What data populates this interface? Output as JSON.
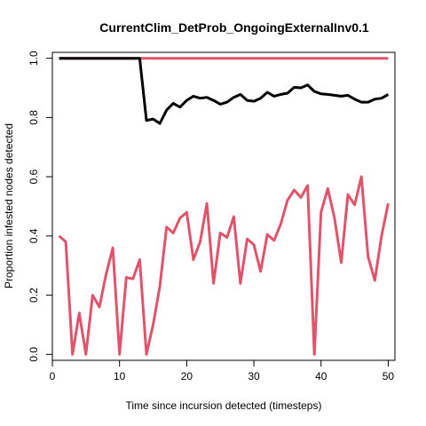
{
  "chart_data": {
    "type": "line",
    "title": "CurrentClim_DetProb_OngoingExternalInv0.1",
    "xlabel": "Time since incursion detected (timesteps)",
    "ylabel": "Proportion infested nodes detected",
    "xlim": [
      0,
      51
    ],
    "ylim": [
      -0.02,
      1.02
    ],
    "xticks": [
      0,
      10,
      20,
      30,
      40,
      50
    ],
    "yticks": [
      0.0,
      0.2,
      0.4,
      0.6,
      0.8,
      1.0
    ],
    "ytick_labels": [
      "0.0",
      "0.2",
      "0.4",
      "0.6",
      "0.8",
      "1.0"
    ],
    "grid": false,
    "legend": "none",
    "series": [
      {
        "color": "#df536b",
        "x": [
          1,
          50
        ],
        "values": [
          1.0,
          1.0
        ]
      },
      {
        "color": "#000000",
        "x": [
          1,
          2,
          3,
          4,
          5,
          6,
          7,
          8,
          9,
          10,
          11,
          12,
          13,
          14,
          15,
          16,
          17,
          18,
          19,
          20,
          21,
          22,
          23,
          24,
          25,
          26,
          27,
          28,
          29,
          30,
          31,
          32,
          33,
          34,
          35,
          36,
          37,
          38,
          39,
          40,
          41,
          42,
          43,
          44,
          45,
          46,
          47,
          48,
          49,
          50
        ],
        "values": [
          1.0,
          1.0,
          1.0,
          1.0,
          1.0,
          1.0,
          1.0,
          1.0,
          1.0,
          1.0,
          1.0,
          1.0,
          1.0,
          0.79,
          0.795,
          0.78,
          0.825,
          0.848,
          0.835,
          0.858,
          0.872,
          0.865,
          0.868,
          0.858,
          0.845,
          0.852,
          0.868,
          0.878,
          0.858,
          0.855,
          0.865,
          0.885,
          0.872,
          0.878,
          0.882,
          0.902,
          0.9,
          0.91,
          0.888,
          0.88,
          0.878,
          0.875,
          0.872,
          0.875,
          0.862,
          0.852,
          0.852,
          0.862,
          0.865,
          0.878
        ]
      },
      {
        "color": "#df536b",
        "x": [
          1,
          2,
          3,
          4,
          5,
          6,
          7,
          8,
          9,
          10,
          11,
          12,
          13,
          14,
          15,
          16,
          17,
          18,
          19,
          20,
          21,
          22,
          23,
          24,
          25,
          26,
          27,
          28,
          29,
          30,
          31,
          32,
          33,
          34,
          35,
          36,
          37,
          38,
          39,
          40,
          41,
          42,
          43,
          44,
          45,
          46,
          47,
          48,
          49,
          50
        ],
        "values": [
          0.4,
          0.38,
          0.0,
          0.14,
          0.0,
          0.2,
          0.16,
          0.27,
          0.36,
          0.0,
          0.26,
          0.255,
          0.32,
          0.0,
          0.1,
          0.23,
          0.43,
          0.41,
          0.46,
          0.48,
          0.32,
          0.38,
          0.51,
          0.24,
          0.41,
          0.395,
          0.465,
          0.24,
          0.39,
          0.37,
          0.28,
          0.405,
          0.385,
          0.44,
          0.52,
          0.555,
          0.53,
          0.57,
          0.0,
          0.48,
          0.56,
          0.46,
          0.31,
          0.54,
          0.505,
          0.6,
          0.33,
          0.25,
          0.4,
          0.51
        ]
      }
    ]
  }
}
